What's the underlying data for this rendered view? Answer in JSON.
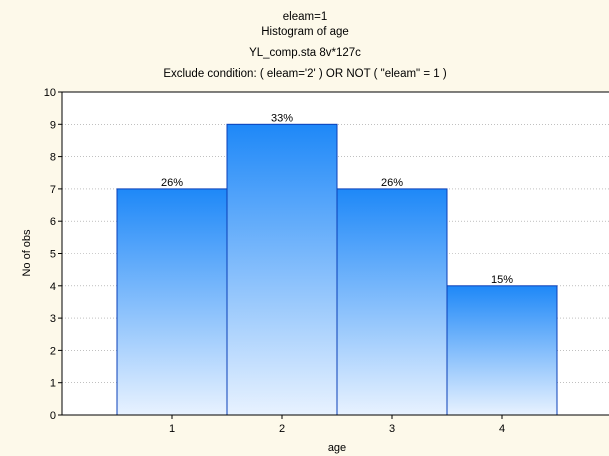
{
  "chart_data": {
    "type": "bar",
    "title_lines": [
      "eleam=1",
      "Histogram of age",
      "YL_comp.sta 8v*127c",
      "Exclude condition: ( eleam='2' ) OR NOT ( \"eleam\" = 1 )"
    ],
    "xlabel": "age",
    "ylabel": "No of obs",
    "categories": [
      "1",
      "2",
      "3",
      "4"
    ],
    "values": [
      7,
      9,
      7,
      4
    ],
    "bar_labels": [
      "26%",
      "33%",
      "26%",
      "15%"
    ],
    "ylim": [
      0,
      10
    ],
    "yticks": [
      0,
      1,
      2,
      3,
      4,
      5,
      6,
      7,
      8,
      9,
      10
    ],
    "grid": true,
    "colors": {
      "bar_top": "#1e88f8",
      "bar_bottom": "#e8f2ff",
      "bar_edge": "#0a3fb8",
      "background": "#fdf9ea",
      "plot_background": "#ffffff",
      "grid": "#9a9a9a"
    }
  }
}
